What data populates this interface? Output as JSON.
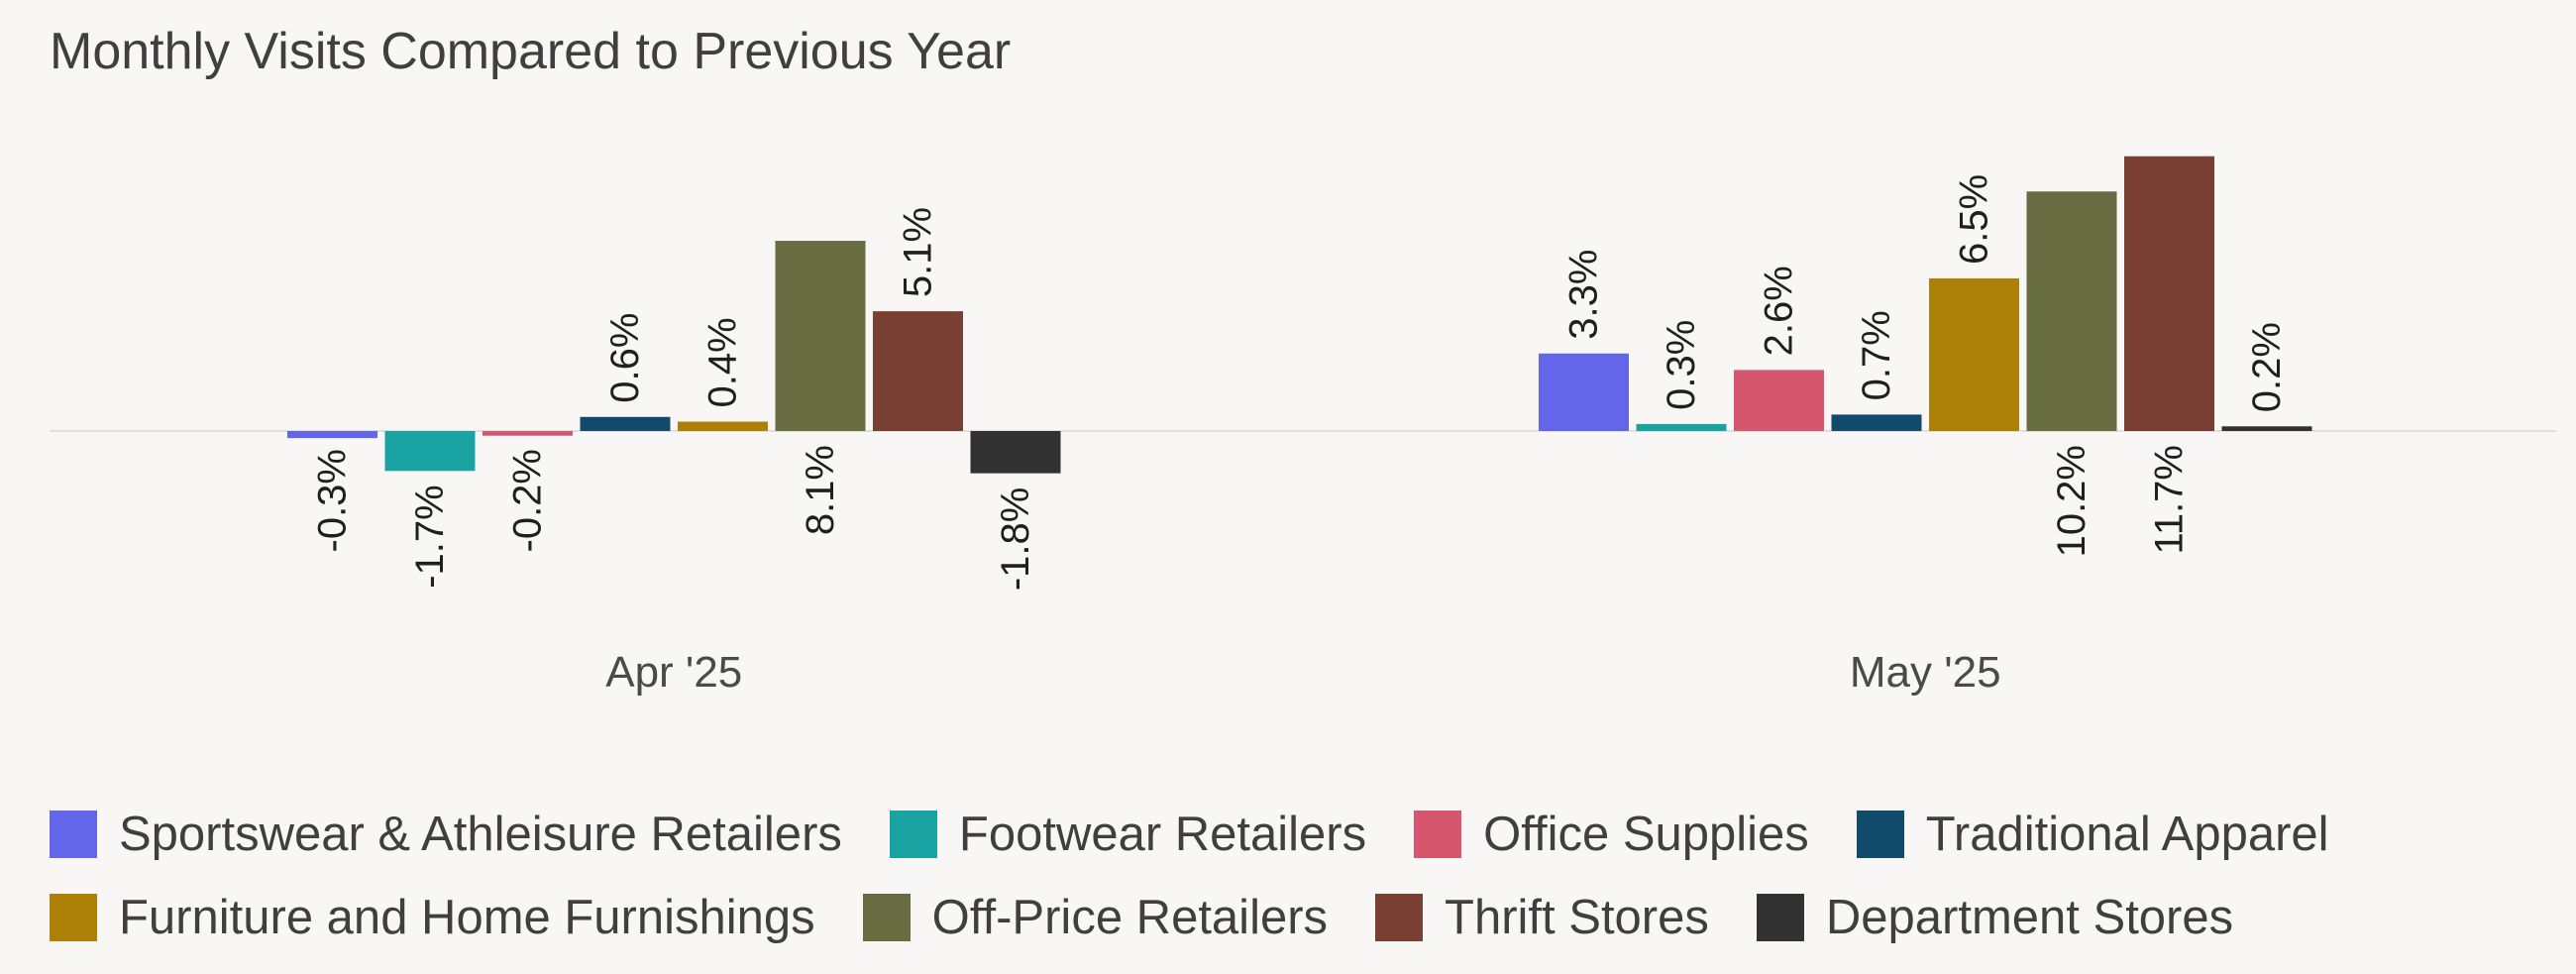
{
  "chart_data": {
    "type": "bar",
    "title": "Monthly Visits Compared to Previous Year",
    "xlabel": "",
    "ylabel": "",
    "categories": [
      "Apr '25",
      "May '25"
    ],
    "unit": "%",
    "ylim": [
      -4,
      12.5
    ],
    "grid": false,
    "legend_position": "bottom",
    "series": [
      {
        "name": "Sportswear & Athleisure Retailers",
        "color": "#6366e8",
        "values": [
          -0.3,
          3.3
        ],
        "labels": [
          "-0.3%",
          "3.3%"
        ]
      },
      {
        "name": "Footwear Retailers",
        "color": "#1aa3a3",
        "values": [
          -1.7,
          0.3
        ],
        "labels": [
          "-1.7%",
          "0.3%"
        ]
      },
      {
        "name": "Office Supplies",
        "color": "#d6566e",
        "values": [
          -0.2,
          2.6
        ],
        "labels": [
          "-0.2%",
          "2.6%"
        ]
      },
      {
        "name": "Traditional Apparel",
        "color": "#124a6b",
        "values": [
          0.6,
          0.7
        ],
        "labels": [
          "0.6%",
          "0.7%"
        ]
      },
      {
        "name": "Furniture and Home Furnishings",
        "color": "#ad8008",
        "values": [
          0.4,
          6.5
        ],
        "labels": [
          "0.4%",
          "6.5%"
        ]
      },
      {
        "name": "Off-Price Retailers",
        "color": "#676d41",
        "values": [
          8.1,
          10.2
        ],
        "labels": [
          "8.1%",
          "10.2%"
        ]
      },
      {
        "name": "Thrift Stores",
        "color": "#7a3f33",
        "values": [
          5.1,
          11.7
        ],
        "labels": [
          "5.1%",
          "11.7%"
        ]
      },
      {
        "name": "Department Stores",
        "color": "#323232",
        "values": [
          -1.8,
          0.2
        ],
        "labels": [
          "-1.8%",
          "0.2%"
        ]
      }
    ]
  }
}
